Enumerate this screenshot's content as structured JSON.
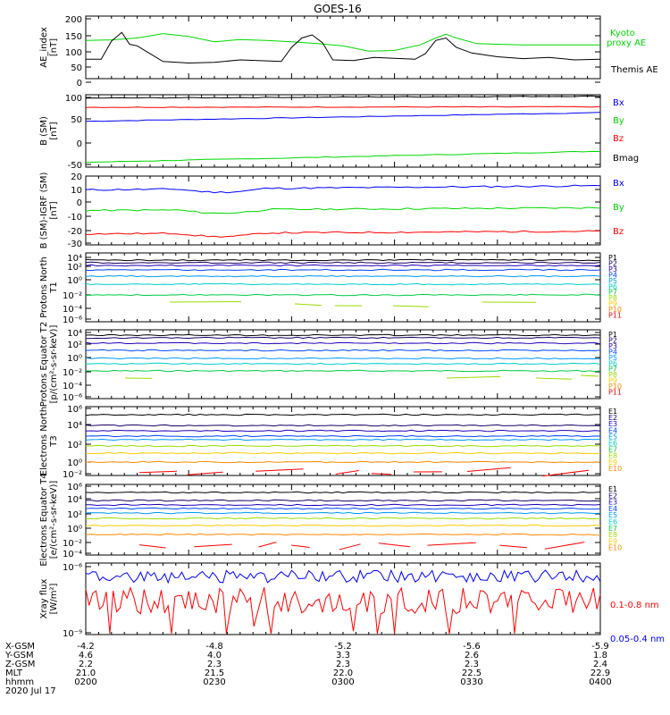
{
  "title": "GOES-16",
  "colors": {
    "black": "#000000",
    "green": "#00d800",
    "blue": "#0000ff",
    "red": "#ff0000",
    "darkred": "#cc0000",
    "p1": "#000000",
    "p2": "#1a0066",
    "p3": "#2200bb",
    "p4": "#0044ff",
    "p5": "#0099ff",
    "p6": "#00cccc",
    "p7": "#00cc44",
    "p8": "#99dd00",
    "p9": "#ffcc00",
    "p10": "#ff8800",
    "p11": "#ff0000"
  },
  "orbit": {
    "rows": [
      {
        "label": "X-GSM",
        "values": [
          "-4.2",
          "-4.8",
          "-5.2",
          "-5.6",
          "-5.9"
        ]
      },
      {
        "label": "Y-GSM",
        "values": [
          "4.6",
          "4.0",
          "3.3",
          "2.6",
          "1.8"
        ]
      },
      {
        "label": "Z-GSM",
        "values": [
          "2.2",
          "2.3",
          "2.3",
          "2.3",
          "2.4"
        ]
      },
      {
        "label": "MLT",
        "values": [
          "21.0",
          "21.5",
          "22.0",
          "22.5",
          "22.9"
        ]
      },
      {
        "label": "hhmm",
        "values": [
          "0200",
          "0230",
          "0300",
          "0330",
          "0400"
        ]
      }
    ],
    "date": "2020 Jul 17"
  },
  "chart_data": [
    {
      "type": "line",
      "ylabel": "AE_index [nT]",
      "yticks": [
        "200",
        "150",
        "100",
        "50",
        "0"
      ],
      "ylim": [
        0,
        200
      ],
      "series": [
        {
          "name": "Kyoto proxy AE",
          "color": "green"
        },
        {
          "name": "Themis AE",
          "color": "black"
        }
      ]
    },
    {
      "type": "line",
      "ylabel": "B (SM) [nT]",
      "yticks": [
        "100",
        "50",
        "0",
        "-50"
      ],
      "ylim": [
        -50,
        100
      ],
      "series": [
        {
          "name": "Bx",
          "color": "blue",
          "start": 45,
          "end": 63
        },
        {
          "name": "By",
          "color": "green",
          "start": -40,
          "end": -17
        },
        {
          "name": "Bz",
          "color": "red",
          "start": 74,
          "end": 75
        },
        {
          "name": "Bmag",
          "color": "black",
          "start": 93,
          "end": 97
        }
      ]
    },
    {
      "type": "line",
      "ylabel": "B (SM)-IGRF (SM) [nT]",
      "yticks": [
        "20",
        "10",
        "0",
        "-10",
        "-20",
        "-30"
      ],
      "ylim": [
        -30,
        20
      ],
      "series": [
        {
          "name": "Bx",
          "color": "blue",
          "start": 10,
          "end": 13
        },
        {
          "name": "By",
          "color": "green",
          "start": -5,
          "end": -3
        },
        {
          "name": "Bz",
          "color": "red",
          "start": -22,
          "end": -20
        }
      ]
    },
    {
      "type": "line",
      "ylabel": "Protons North T1",
      "yticks": [
        "10⁴",
        "10²",
        "10⁰",
        "10⁻²",
        "10⁻⁴",
        "10⁻⁶"
      ],
      "channels": [
        "P1",
        "P2",
        "P3",
        "P4",
        "P5",
        "P6",
        "P7",
        "P8",
        "P9",
        "P10",
        "P11"
      ]
    },
    {
      "type": "line",
      "ylabel": "Protons Equator T2 [p/(cm²-s-sr-keV)]",
      "yticks": [
        "10⁴",
        "10²",
        "10⁰",
        "10⁻²",
        "10⁻⁴",
        "10⁻⁶"
      ],
      "channels": [
        "P1",
        "P2",
        "P3",
        "P4",
        "P5",
        "P6",
        "P7",
        "P8",
        "P9",
        "P10",
        "P11"
      ]
    },
    {
      "type": "line",
      "ylabel": "Electrons North T3",
      "yticks": [
        "10⁶",
        "10⁴",
        "10²",
        "10⁰",
        "10⁻²"
      ],
      "channels": [
        "E1",
        "E2",
        "E3",
        "E4",
        "E5",
        "E6",
        "E7",
        "E8",
        "E9",
        "E10"
      ]
    },
    {
      "type": "line",
      "ylabel": "Electrons Equator T4 [e/(cm²-s-sr-keV)]",
      "yticks": [
        "10⁶",
        "10⁴",
        "10²",
        "10⁰",
        "10⁻²",
        "10⁻⁴"
      ],
      "channels": [
        "E1",
        "E2",
        "E3",
        "E4",
        "E5",
        "E6",
        "E7",
        "E8",
        "E9",
        "E10"
      ]
    },
    {
      "type": "line",
      "ylabel": "Xray flux [W/m²]",
      "yticks": [
        "10⁻⁶",
        "10⁻⁹"
      ],
      "series": [
        {
          "name": "0.1-0.8 nm",
          "color": "red"
        },
        {
          "name": "0.05-0.4 nm",
          "color": "blue"
        }
      ]
    }
  ]
}
